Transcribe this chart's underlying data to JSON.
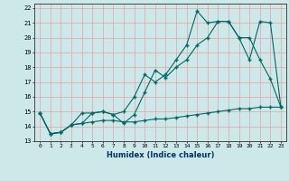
{
  "xlabel": "Humidex (Indice chaleur)",
  "background_color": "#cde8e8",
  "grid_color": "#e8a0a0",
  "line_color": "#006868",
  "xlim": [
    -0.5,
    23.5
  ],
  "ylim": [
    13,
    22.3
  ],
  "yticks": [
    13,
    14,
    15,
    16,
    17,
    18,
    19,
    20,
    21,
    22
  ],
  "xticks": [
    0,
    1,
    2,
    3,
    4,
    5,
    6,
    7,
    8,
    9,
    10,
    11,
    12,
    13,
    14,
    15,
    16,
    17,
    18,
    19,
    20,
    21,
    22,
    23
  ],
  "line1_x": [
    0,
    1,
    2,
    3,
    4,
    5,
    6,
    7,
    8,
    9,
    10,
    11,
    12,
    13,
    14,
    15,
    16,
    17,
    18,
    19,
    20,
    21,
    22,
    23
  ],
  "line1_y": [
    14.9,
    13.5,
    13.6,
    14.1,
    14.2,
    14.3,
    14.4,
    14.4,
    14.3,
    14.3,
    14.4,
    14.5,
    14.5,
    14.6,
    14.7,
    14.8,
    14.9,
    15.0,
    15.1,
    15.2,
    15.2,
    15.3,
    15.3,
    15.3
  ],
  "line2_x": [
    0,
    1,
    2,
    3,
    4,
    5,
    6,
    7,
    8,
    9,
    10,
    11,
    12,
    13,
    14,
    15,
    16,
    17,
    18,
    19,
    20,
    21,
    22,
    23
  ],
  "line2_y": [
    14.9,
    13.5,
    13.6,
    14.1,
    14.9,
    14.9,
    15.0,
    14.8,
    15.0,
    16.0,
    17.5,
    17.0,
    17.5,
    18.5,
    19.5,
    21.8,
    21.0,
    21.1,
    21.1,
    20.0,
    18.5,
    21.1,
    21.0,
    15.3
  ],
  "line3_x": [
    0,
    1,
    2,
    3,
    4,
    5,
    6,
    7,
    8,
    9,
    10,
    11,
    12,
    13,
    14,
    15,
    16,
    17,
    18,
    19,
    20,
    21,
    22,
    23
  ],
  "line3_y": [
    14.9,
    13.5,
    13.6,
    14.1,
    14.2,
    14.9,
    15.0,
    14.8,
    14.2,
    14.8,
    16.3,
    17.8,
    17.3,
    18.0,
    18.5,
    19.5,
    20.0,
    21.1,
    21.1,
    20.0,
    20.0,
    18.5,
    17.2,
    15.3
  ]
}
